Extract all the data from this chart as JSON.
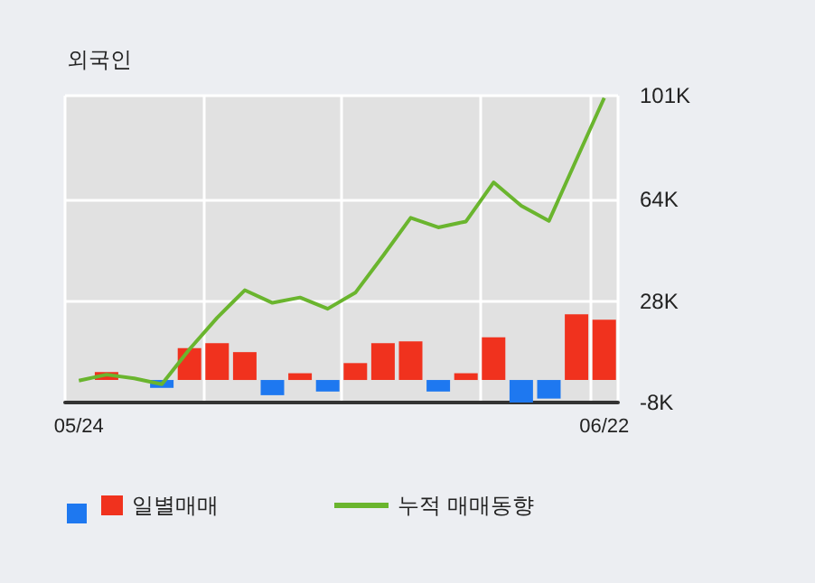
{
  "chart_data": {
    "type": "bar",
    "title": "외국인",
    "categories": [
      "05/24",
      null,
      null,
      null,
      null,
      null,
      null,
      null,
      null,
      null,
      null,
      null,
      null,
      null,
      null,
      null,
      null,
      null,
      null,
      "06/22"
    ],
    "series": [
      {
        "name": "일별매매",
        "color": "#f0321e",
        "values": [
          0,
          2.8,
          0,
          -2.8,
          11.3,
          13.1,
          9.9,
          -5.4,
          2.4,
          -4.1,
          6.0,
          13.1,
          13.7,
          -4.1,
          2.4,
          15.2,
          -8,
          -6.6,
          23.3,
          21.4
        ],
        "colors": [
          "#1e78f0",
          "#f0321e",
          "#1e78f0",
          "#1e78f0",
          "#f0321e",
          "#f0321e",
          "#f0321e",
          "#1e78f0",
          "#f0321e",
          "#1e78f0",
          "#f0321e",
          "#f0321e",
          "#f0321e",
          "#1e78f0",
          "#f0321e",
          "#f0321e",
          "#1e78f0",
          "#1e78f0",
          "#f0321e",
          "#f0321e"
        ]
      },
      {
        "name": "누적 매매동향",
        "type": "line",
        "color": "#6ab52e",
        "values": [
          -0.2,
          1.9,
          0.6,
          -1.5,
          10.9,
          22.1,
          31.9,
          27.4,
          29.3,
          25.3,
          31.0,
          44.1,
          57.6,
          54.2,
          56.3,
          70.2,
          61.9,
          56.5,
          78.4,
          100.2
        ]
      }
    ],
    "ylim": [
      -8,
      101
    ],
    "yticks": [
      {
        "value": -8,
        "label": "-8K"
      },
      {
        "value": 28,
        "label": "28K"
      },
      {
        "value": 64,
        "label": "64K"
      },
      {
        "value": 101,
        "label": "101K"
      }
    ],
    "grid": true,
    "legend": "bottom",
    "marker": "none"
  }
}
